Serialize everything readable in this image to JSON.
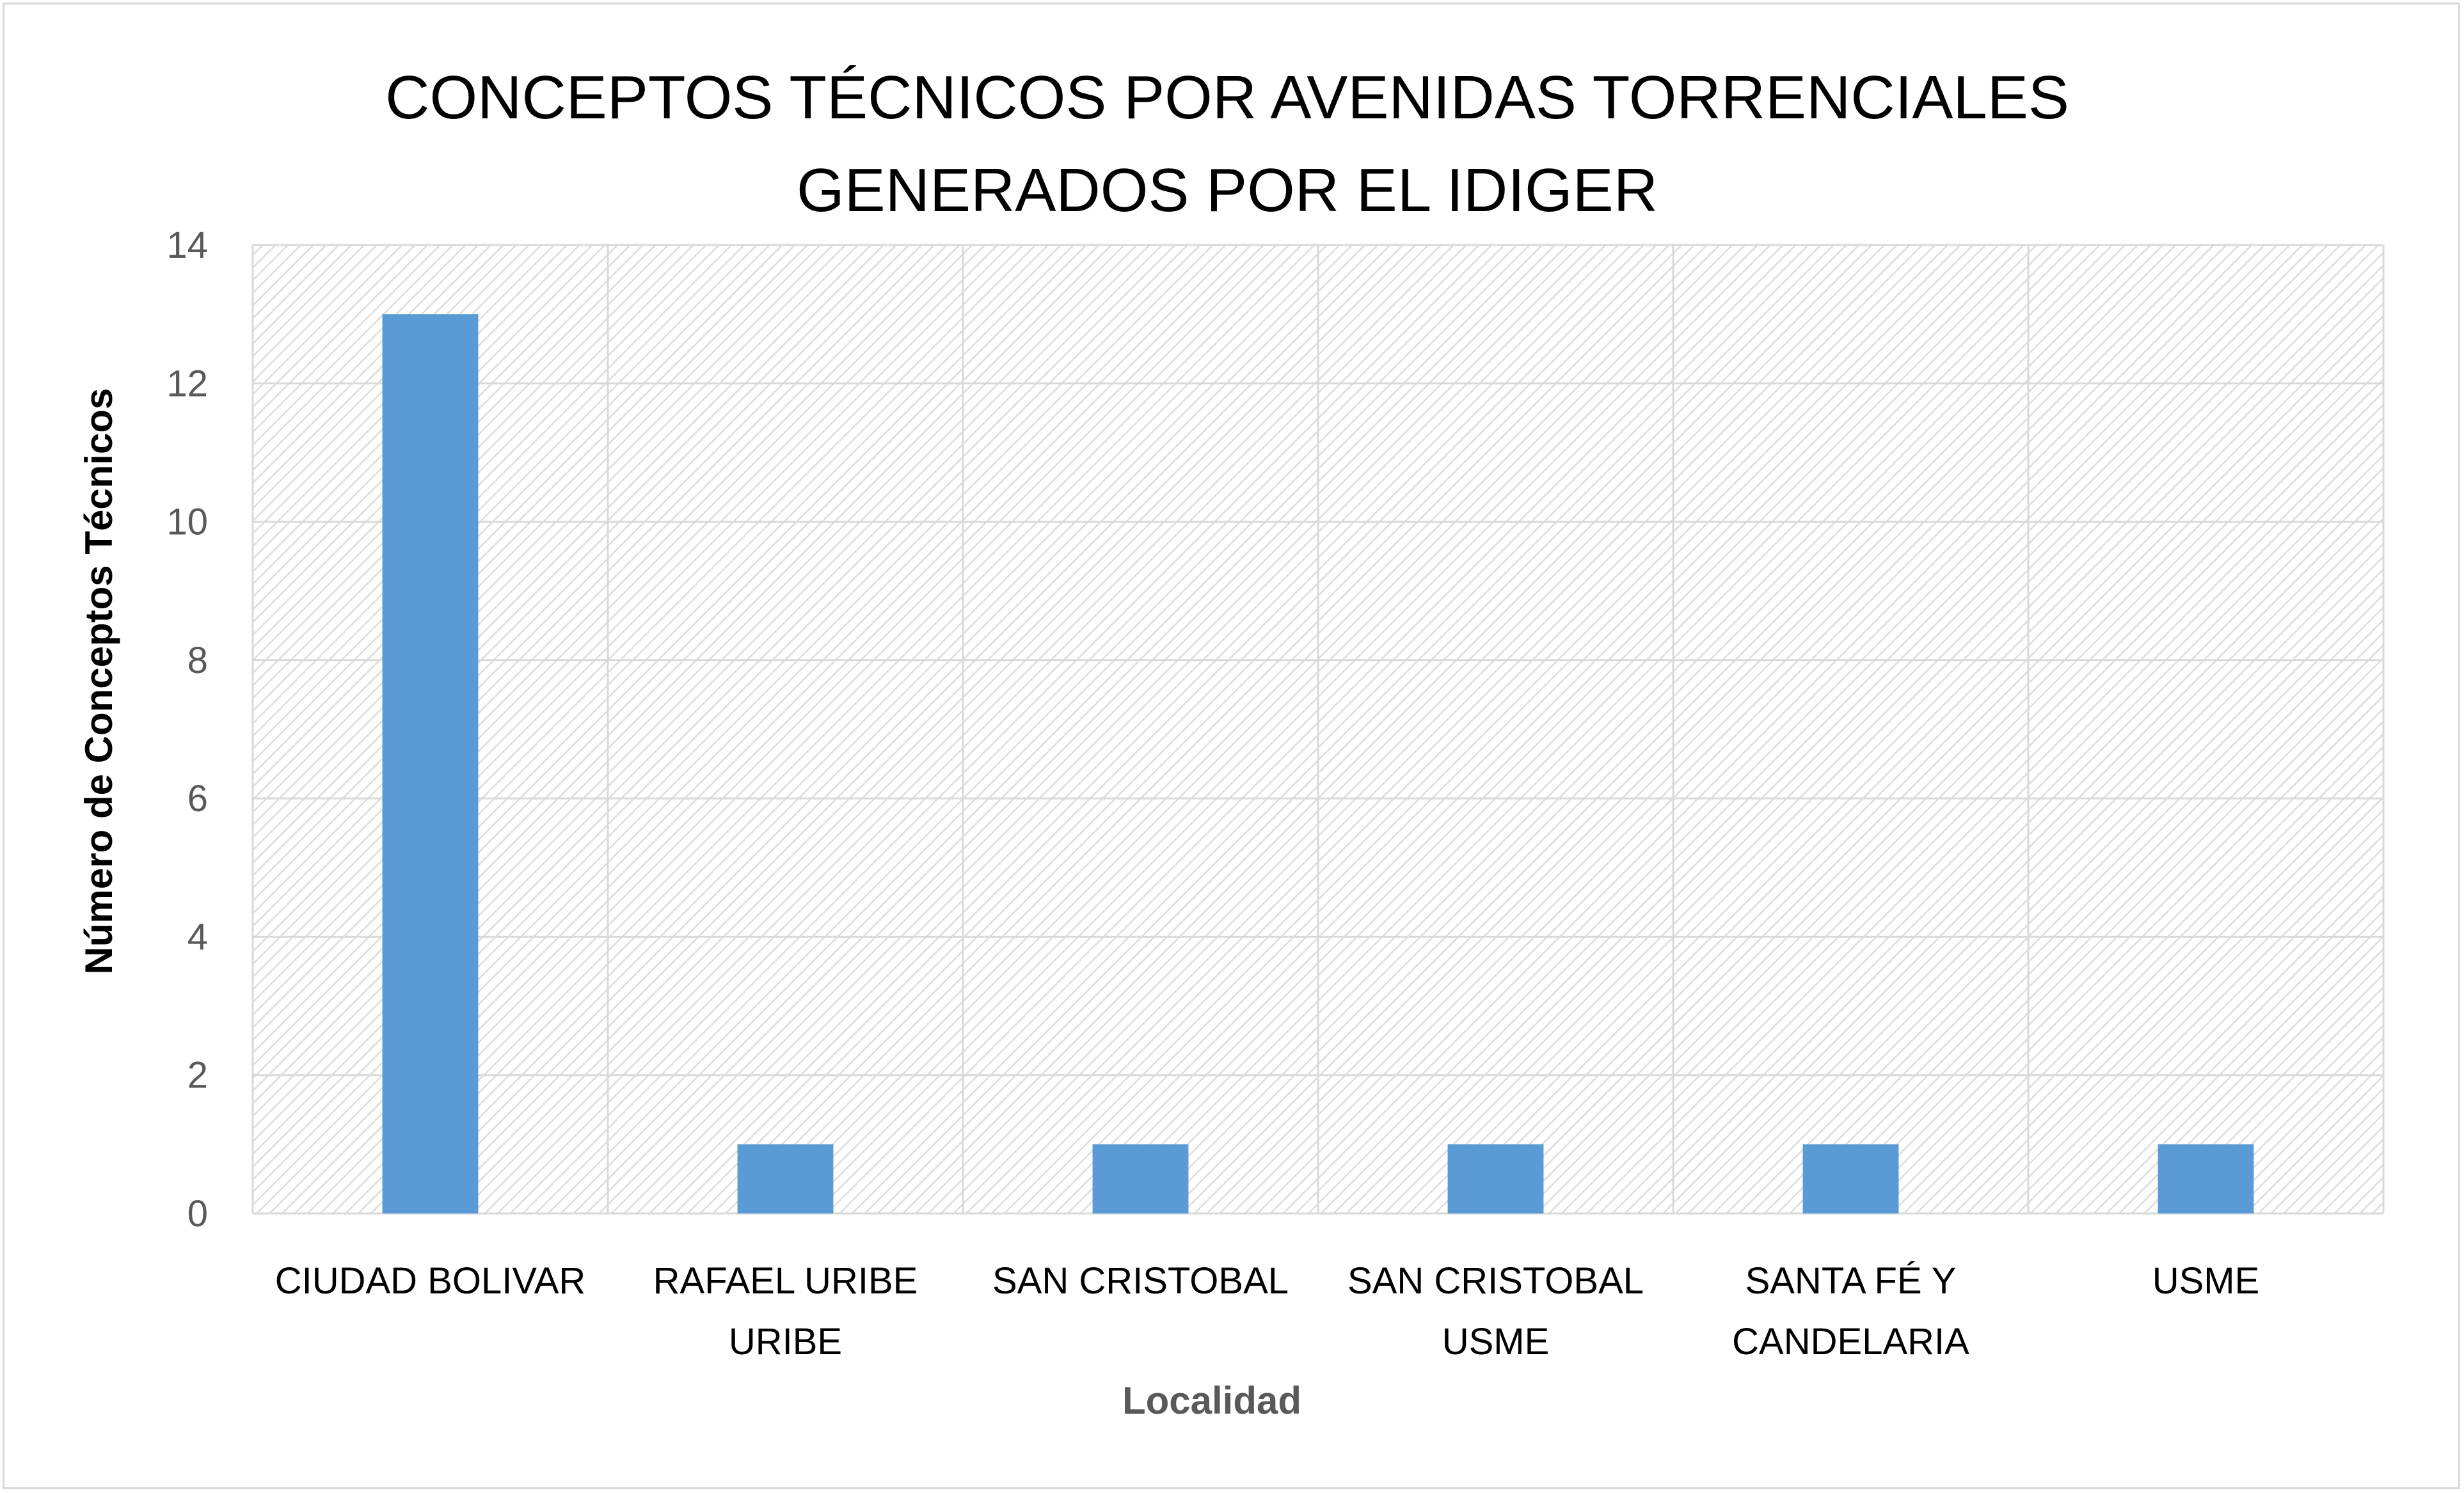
{
  "chart_data": {
    "type": "bar",
    "title_lines": [
      "CONCEPTOS TÉCNICOS POR AVENIDAS TORRENCIALES",
      "GENERADOS POR EL IDIGER"
    ],
    "xlabel": "Localidad",
    "ylabel": "Número de Conceptos Técnicos",
    "categories": [
      [
        "CIUDAD BOLIVAR"
      ],
      [
        "RAFAEL URIBE",
        "URIBE"
      ],
      [
        "SAN CRISTOBAL"
      ],
      [
        "SAN CRISTOBAL",
        "USME"
      ],
      [
        "SANTA FÉ Y",
        "CANDELARIA"
      ],
      [
        "USME"
      ]
    ],
    "values": [
      13,
      1,
      1,
      1,
      1,
      1
    ],
    "ylim": [
      0,
      14
    ],
    "yticks": [
      0,
      2,
      4,
      6,
      8,
      10,
      12,
      14
    ],
    "grid": true,
    "legend": "none",
    "colors": {
      "bar": "#5b9bd5",
      "xlabel": "#595959",
      "ylabel": "#000000"
    }
  }
}
